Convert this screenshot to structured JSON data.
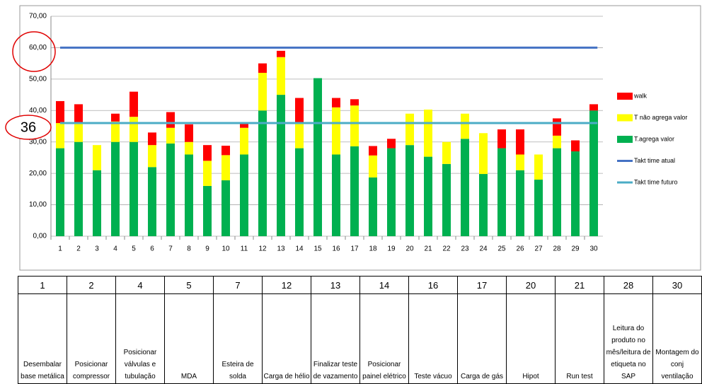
{
  "chart_data": {
    "type": "bar",
    "stacked": true,
    "categories": [
      1,
      2,
      3,
      4,
      5,
      6,
      7,
      8,
      9,
      10,
      11,
      12,
      13,
      14,
      15,
      16,
      17,
      18,
      19,
      20,
      21,
      22,
      23,
      24,
      25,
      26,
      27,
      28,
      29,
      30
    ],
    "series": [
      {
        "name": "T.agrega valor",
        "color": "#00b050",
        "values": [
          28,
          30,
          21,
          30,
          30,
          22,
          29.5,
          26,
          16,
          17.8,
          26,
          40,
          45,
          28,
          50.3,
          26,
          28.6,
          18.7,
          28,
          29,
          25.3,
          23,
          31,
          19.8,
          28,
          21,
          18,
          28,
          27,
          40
        ]
      },
      {
        "name": "T não agrega valor",
        "color": "#ffff00",
        "values": [
          8,
          6,
          8,
          6.5,
          8,
          7,
          5,
          4,
          8,
          8,
          8.5,
          12,
          12,
          8,
          0,
          15,
          13,
          7,
          0,
          10,
          15,
          7,
          8,
          13,
          0,
          5,
          8,
          4,
          0,
          0
        ]
      },
      {
        "name": "walk",
        "color": "#ff0000",
        "values": [
          7,
          6,
          0,
          2.5,
          8,
          4,
          5,
          5.6,
          5,
          3,
          1.3,
          3,
          2,
          8,
          0,
          3,
          2,
          3,
          3,
          0,
          0,
          0,
          0,
          0,
          6,
          8,
          0,
          5.5,
          3.5,
          2
        ]
      }
    ],
    "lines": [
      {
        "name": "Takt time atual",
        "color": "#4472c4",
        "value": 60
      },
      {
        "name": "Takt time futuro",
        "color": "#4bacc6",
        "value": 36
      }
    ],
    "annotation": "36",
    "ylim": [
      0,
      70
    ],
    "yticks": [
      {
        "value": 0,
        "label": "0,00"
      },
      {
        "value": 10,
        "label": "10,00"
      },
      {
        "value": 20,
        "label": "20,00"
      },
      {
        "value": 30,
        "label": "30,00"
      },
      {
        "value": 40,
        "label": "40,00"
      },
      {
        "value": 50,
        "label": "50,00"
      },
      {
        "value": 60,
        "label": "60,00"
      },
      {
        "value": 70,
        "label": "70,00"
      }
    ],
    "grid": true,
    "legend": "right"
  },
  "table": {
    "header": [
      1,
      2,
      4,
      5,
      7,
      12,
      13,
      14,
      16,
      17,
      20,
      21,
      28,
      30
    ],
    "rows": [
      [
        "Desembalar base metálica",
        "Posicionar compressor",
        "Posicionar válvulas e tubulação",
        "MDA",
        "Esteira de solda",
        "Carga de hélio",
        "Finalizar teste de vazamento",
        "Posicionar painel elétrico",
        "Teste vácuo",
        "Carga de gás",
        "Hipot",
        "Run test",
        "Leitura do produto no mês/leitura de etiqueta no SAP",
        "Montagem do conj ventilação"
      ]
    ]
  }
}
